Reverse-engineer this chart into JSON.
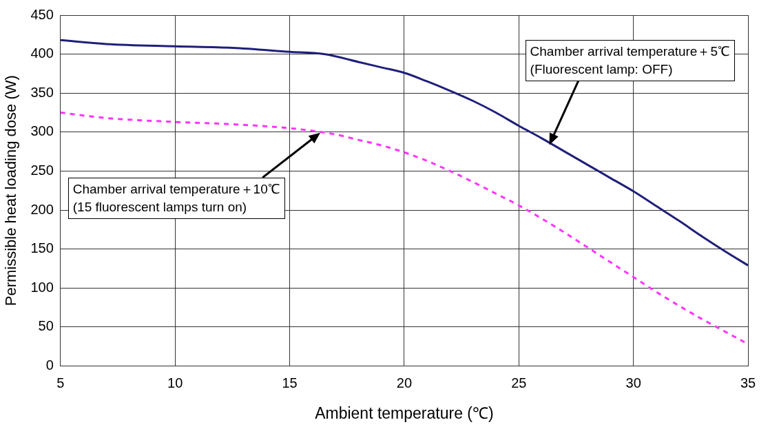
{
  "chart_data": {
    "type": "line",
    "xlabel": "Ambient temperature (℃)",
    "ylabel": "Permissible heat loading dose (W)",
    "xlim": [
      5,
      35
    ],
    "xticks": [
      5,
      10,
      15,
      20,
      25,
      30,
      35
    ],
    "ylim": [
      0,
      450
    ],
    "yticks": [
      0,
      50,
      100,
      150,
      200,
      250,
      300,
      350,
      400,
      450
    ],
    "grid": true,
    "legend": false,
    "marker": "none",
    "series": [
      {
        "color": "#1f1f7a",
        "line_style": "solid",
        "x": [
          5,
          7,
          10,
          12.5,
          15,
          16.5,
          18,
          19,
          20,
          21,
          22,
          23,
          24,
          25,
          26,
          27,
          28,
          29,
          30,
          31,
          32,
          33,
          34,
          35
        ],
        "values": [
          418,
          413,
          410,
          408,
          403,
          400,
          390,
          383,
          376,
          365,
          353,
          340,
          325,
          308,
          292,
          275,
          258,
          241,
          224,
          205,
          186,
          166,
          147,
          129
        ]
      },
      {
        "color": "#ff33ff",
        "line_style": "dashed",
        "x": [
          5,
          7,
          10,
          12.5,
          15,
          17,
          18,
          19,
          20,
          21,
          22,
          23,
          24,
          25,
          26,
          27,
          28,
          29,
          30,
          31,
          32,
          33,
          34,
          35
        ],
        "values": [
          325,
          318,
          313,
          310,
          305,
          297,
          290,
          283,
          274,
          263,
          250,
          236,
          221,
          206,
          189,
          171,
          152,
          133,
          114,
          95,
          77,
          60,
          44,
          28
        ]
      }
    ],
    "annotations": [
      "Chamber arrival temperature＋5℃\n(Fluorescent lamp: OFF)",
      "Chamber arrival temperature＋10℃\n(15 fluorescent lamps turn on)"
    ]
  }
}
